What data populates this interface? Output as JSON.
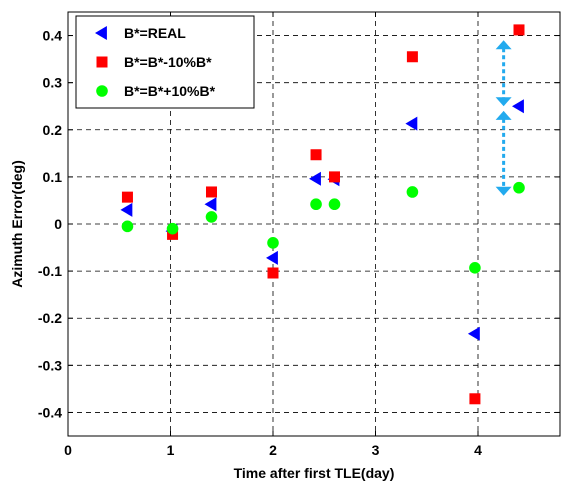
{
  "chart_data": {
    "type": "scatter",
    "title": "",
    "xlabel": "Time after first TLE(day)",
    "ylabel": "Azimuth Error(deg)",
    "xlim": [
      0,
      4.8
    ],
    "ylim": [
      -0.45,
      0.45
    ],
    "xticks": [
      0,
      1,
      2,
      3,
      4
    ],
    "xtick_labels": [
      "0",
      "1",
      "2",
      "3",
      "4"
    ],
    "yticks": [
      -0.4,
      -0.3,
      -0.2,
      -0.1,
      0,
      0.1,
      0.2,
      0.3,
      0.4
    ],
    "ytick_labels": [
      "-0.4",
      "-0.3",
      "-0.2",
      "-0.1",
      "0",
      "0.1",
      "0.2",
      "0.3",
      "0.4"
    ],
    "grid": true,
    "legend_position": "top-left",
    "series": [
      {
        "name": "B*=REAL",
        "marker": "triangle-left",
        "color": "#0000ff",
        "x": [
          0.58,
          1.02,
          1.4,
          2.0,
          2.42,
          2.6,
          3.36,
          3.97,
          4.4
        ],
        "y": [
          0.03,
          -0.015,
          0.042,
          -0.072,
          0.096,
          0.095,
          0.213,
          -0.233,
          0.25
        ]
      },
      {
        "name": "B*=B*-10%B*",
        "marker": "square",
        "color": "#ff0000",
        "x": [
          0.58,
          1.02,
          1.4,
          2.0,
          2.42,
          2.6,
          3.36,
          3.97,
          4.4
        ],
        "y": [
          0.057,
          -0.022,
          0.068,
          -0.104,
          0.147,
          0.1,
          0.355,
          -0.371,
          0.412
        ]
      },
      {
        "name": "B*=B*+10%B*",
        "marker": "circle",
        "color": "#00ff00",
        "x": [
          0.58,
          1.02,
          1.4,
          2.0,
          2.42,
          2.6,
          3.36,
          3.97,
          4.4
        ],
        "y": [
          -0.005,
          -0.01,
          0.015,
          -0.04,
          0.042,
          0.042,
          0.068,
          -0.093,
          0.077
        ]
      }
    ],
    "annotations": [
      {
        "type": "double-arrow",
        "x": 4.25,
        "y_from": 0.25,
        "y_to": 0.39,
        "color": "#22aaee"
      },
      {
        "type": "double-arrow",
        "x": 4.25,
        "y_from": 0.06,
        "y_to": 0.24,
        "color": "#22aaee"
      }
    ]
  }
}
